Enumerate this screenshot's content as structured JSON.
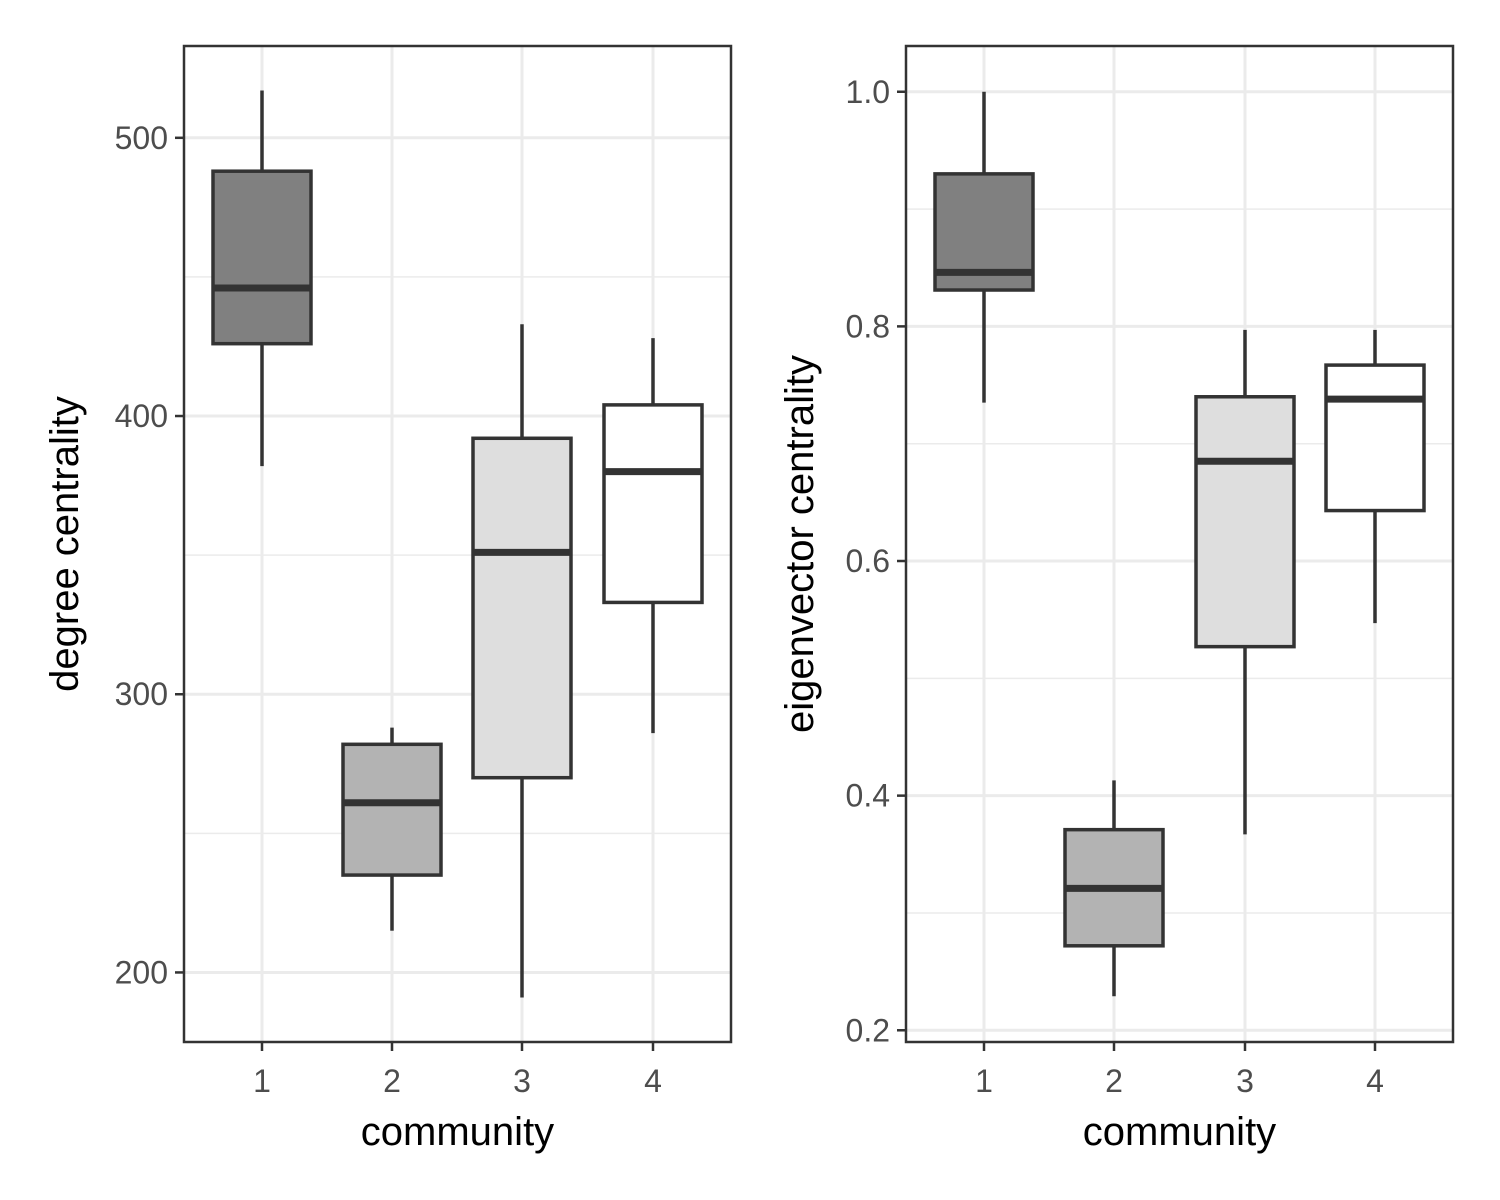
{
  "chart_data": [
    {
      "type": "boxplot",
      "xlabel": "community",
      "ylabel": "degree centrality",
      "categories": [
        "1",
        "2",
        "3",
        "4"
      ],
      "yticks": [
        200,
        300,
        400,
        500
      ],
      "ylim": [
        175,
        533
      ],
      "grid": true,
      "boxes": [
        {
          "category": "1",
          "whisker_low": 382,
          "q1": 426,
          "median": 446,
          "q3": 488,
          "whisker_high": 517,
          "fill": "#808080"
        },
        {
          "category": "2",
          "whisker_low": 215,
          "q1": 235,
          "median": 261,
          "q3": 282,
          "whisker_high": 288,
          "fill": "#b3b3b3"
        },
        {
          "category": "3",
          "whisker_low": 191,
          "q1": 270,
          "median": 351,
          "q3": 392,
          "whisker_high": 433,
          "fill": "#dedede"
        },
        {
          "category": "4",
          "whisker_low": 286,
          "q1": 333,
          "median": 380,
          "q3": 404,
          "whisker_high": 428,
          "fill": "#ffffff"
        }
      ]
    },
    {
      "type": "boxplot",
      "xlabel": "community",
      "ylabel": "eigenvector centrality",
      "categories": [
        "1",
        "2",
        "3",
        "4"
      ],
      "yticks": [
        0.2,
        0.4,
        0.6,
        0.8,
        1.0
      ],
      "ytick_labels": [
        "0.2",
        "0.4",
        "0.6",
        "0.8",
        "1.0"
      ],
      "ylim": [
        0.19,
        1.039
      ],
      "grid": true,
      "boxes": [
        {
          "category": "1",
          "whisker_low": 0.735,
          "q1": 0.831,
          "median": 0.846,
          "q3": 0.93,
          "whisker_high": 1.0,
          "fill": "#808080"
        },
        {
          "category": "2",
          "whisker_low": 0.229,
          "q1": 0.272,
          "median": 0.321,
          "q3": 0.371,
          "whisker_high": 0.413,
          "fill": "#b3b3b3"
        },
        {
          "category": "3",
          "whisker_low": 0.367,
          "q1": 0.527,
          "median": 0.685,
          "q3": 0.74,
          "whisker_high": 0.797,
          "fill": "#dedede"
        },
        {
          "category": "4",
          "whisker_low": 0.547,
          "q1": 0.643,
          "median": 0.738,
          "q3": 0.767,
          "whisker_high": 0.797,
          "fill": "#ffffff"
        }
      ]
    }
  ]
}
